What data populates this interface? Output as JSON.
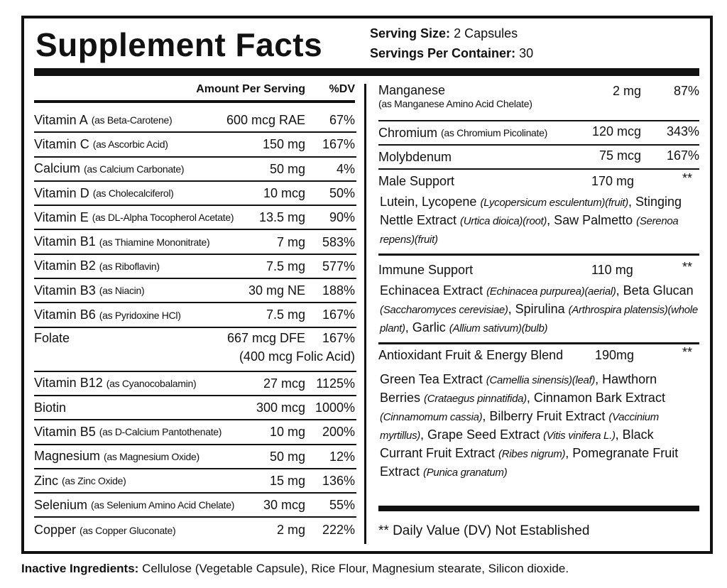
{
  "header": {
    "title": "Supplement Facts",
    "serving_size_label": "Serving Size:",
    "serving_size": "2 Capsules",
    "servings_label": "Servings Per Container:",
    "servings": "30"
  },
  "left": {
    "col_amount": "Amount Per Serving",
    "col_dv": "%DV",
    "rows": [
      {
        "name": "Vitamin A",
        "source": "(as Beta-Carotene)",
        "amount": "600 mcg RAE",
        "dv": "67%"
      },
      {
        "name": "Vitamin C",
        "source": "(as Ascorbic Acid)",
        "amount": "150 mg",
        "dv": "167%"
      },
      {
        "name": "Calcium",
        "source": "(as Calcium Carbonate)",
        "amount": "50 mg",
        "dv": "4%"
      },
      {
        "name": "Vitamin D",
        "source": "(as Cholecalciferol)",
        "amount": "10 mcg",
        "dv": "50%"
      },
      {
        "name": "Vitamin E",
        "source": "(as DL-Alpha Tocopherol Acetate)",
        "amount": "13.5 mg",
        "dv": "90%"
      },
      {
        "name": "Vitamin B1",
        "source": "(as Thiamine Mononitrate)",
        "amount": "7 mg",
        "dv": "583%"
      },
      {
        "name": "Vitamin B2",
        "source": "(as Riboflavin)",
        "amount": "7.5 mg",
        "dv": "577%"
      },
      {
        "name": "Vitamin B3",
        "source": "(as Niacin)",
        "amount": "30 mg NE",
        "dv": "188%"
      },
      {
        "name": "Vitamin B6",
        "source": "(as Pyridoxine HCl)",
        "amount": "7.5 mg",
        "dv": "167%"
      },
      {
        "name": "Folate",
        "amount": "667 mcg DFE",
        "dv": "167%",
        "amount_note": "(400 mcg Folic Acid)"
      },
      {
        "name": "Vitamin B12",
        "source": "(as Cyanocobalamin)",
        "amount": "27 mcg",
        "dv": "1125%"
      },
      {
        "name": "Biotin",
        "amount": "300 mcg",
        "dv": "1000%"
      },
      {
        "name": "Vitamin B5",
        "source": "(as D-Calcium Pantothenate)",
        "amount": "10 mg",
        "dv": "200%"
      },
      {
        "name": "Magnesium",
        "source": "(as Magnesium Oxide)",
        "amount": "50 mg",
        "dv": "12%"
      },
      {
        "name": "Zinc",
        "source": "(as Zinc Oxide)",
        "amount": "15 mg",
        "dv": "136%"
      },
      {
        "name": "Selenium",
        "source": "(as Selenium Amino Acid Chelate)",
        "amount": "30 mcg",
        "dv": "55%"
      },
      {
        "name": "Copper",
        "source": "(as Copper Gluconate)",
        "amount": "2 mg",
        "dv": "222%"
      }
    ]
  },
  "right": {
    "rows": [
      {
        "name": "Manganese",
        "source": "(as Manganese Amino Acid Chelate)",
        "amount": "2 mg",
        "dv": "87%"
      },
      {
        "name": "Chromium",
        "source": "(as Chromium Picolinate)",
        "amount": "120 mcg",
        "dv": "343%"
      },
      {
        "name": "Molybdenum",
        "amount": "75 mcg",
        "dv": "167%"
      }
    ],
    "blends": [
      {
        "name": "Male Support",
        "amount": "170 mg",
        "dv": "**",
        "parts": [
          "Lutein, Lycopene ",
          {
            "em": "(Lycopersicum esculentum)(fruit)"
          },
          ", Stinging Nettle Extract ",
          {
            "em": "(Urtica dioica)(root)"
          },
          ", Saw Palmetto ",
          {
            "em": "(Serenoa repens)(fruit)"
          }
        ]
      },
      {
        "name": "Immune Support",
        "amount": "110 mg",
        "dv": "**",
        "parts": [
          "Echinacea Extract ",
          {
            "em": "(Echinacea purpurea)(aerial)"
          },
          ", Beta Glucan ",
          {
            "em": "(Saccharomyces cerevisiae)"
          },
          ", Spirulina ",
          {
            "em": "(Arthrospira platensis)(whole plant)"
          },
          ", Garlic ",
          {
            "em": "(Allium sativum)(bulb)"
          }
        ]
      },
      {
        "name": "Antioxidant Fruit & Energy Blend",
        "amount": "190mg",
        "dv": "**",
        "parts": [
          "Green Tea Extract ",
          {
            "em": "(Camellia sinensis)(leaf)"
          },
          ", Hawthorn Berries ",
          {
            "em": "(Crataegus pinnatifida)"
          },
          ", Cinnamon Bark Extract ",
          {
            "em": "(Cinnamomum cassia)"
          },
          ", Bilberry Fruit Extract ",
          {
            "em": "(Vaccinium myrtillus)"
          },
          ", Grape Seed Extract ",
          {
            "em": "(Vitis vinifera L.)"
          },
          ", Black Currant Fruit Extract ",
          {
            "em": "(Ribes nigrum)"
          },
          ", Pomegranate Fruit Extract ",
          {
            "em": "(Punica granatum)"
          }
        ]
      }
    ]
  },
  "footnote": "** Daily Value (DV) Not Established",
  "inactive": {
    "label": "Inactive Ingredients:",
    "text": "Cellulose (Vegetable Capsule), Rice Flour, Magnesium stearate, Silicon dioxide."
  }
}
